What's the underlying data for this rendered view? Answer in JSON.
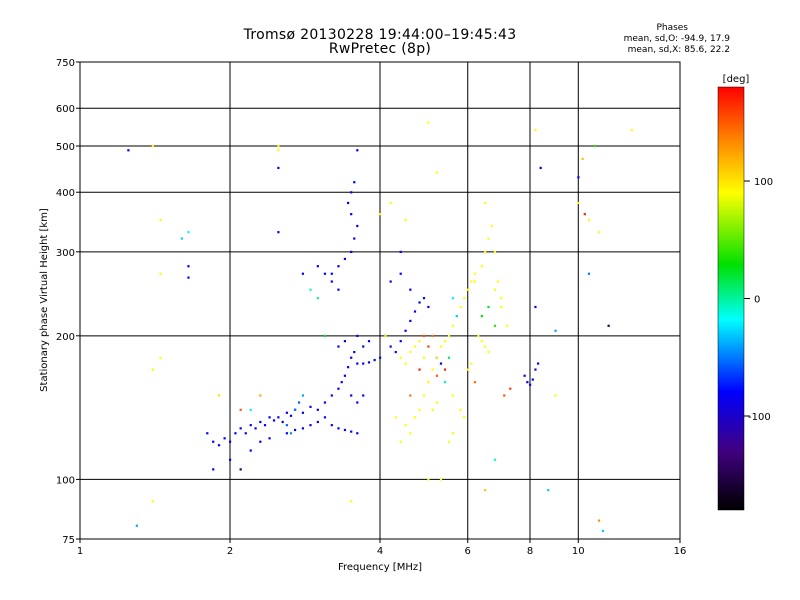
{
  "chart_data": {
    "type": "scatter",
    "title": "Tromsø 20130228 19:44:00–19:45:43",
    "subtitle": "RwPretec (8p)",
    "phases_header": "Phases",
    "phase_stats": [
      "mean, sd,O: -94.9, 17.9",
      "mean, sd,X:  85.6, 22.2"
    ],
    "xlabel": "Frequency [MHz]",
    "ylabel": "Stationary phase Virtual Height [km]",
    "x_scale": "log",
    "y_scale": "log",
    "xlim": [
      1,
      16
    ],
    "ylim": [
      75,
      750
    ],
    "x_ticks": [
      1,
      2,
      4,
      6,
      8,
      10,
      16
    ],
    "y_ticks": [
      75,
      100,
      200,
      300,
      400,
      500,
      600,
      750
    ],
    "grid": true,
    "colorbar": {
      "label": "[deg]",
      "range": [
        -180,
        180
      ],
      "ticks": [
        100,
        0,
        -100
      ],
      "colors": [
        "#ff0000",
        "#ff8000",
        "#ffff00",
        "#00e000",
        "#00ffff",
        "#0000ff",
        "#400080",
        "#000000"
      ]
    },
    "series": [
      {
        "name": "O",
        "phase_mean": -94.9,
        "phase_sd": 17.9,
        "color": "#0000ff",
        "points": [
          [
            1.25,
            490
          ],
          [
            1.65,
            280
          ],
          [
            1.65,
            265
          ],
          [
            1.8,
            125
          ],
          [
            1.85,
            120
          ],
          [
            1.9,
            118
          ],
          [
            1.95,
            122
          ],
          [
            2.0,
            120
          ],
          [
            2.05,
            125
          ],
          [
            2.1,
            128
          ],
          [
            2.15,
            125
          ],
          [
            2.2,
            130
          ],
          [
            2.25,
            128
          ],
          [
            2.3,
            132
          ],
          [
            2.35,
            130
          ],
          [
            2.4,
            135
          ],
          [
            2.45,
            133
          ],
          [
            2.5,
            135
          ],
          [
            2.55,
            132
          ],
          [
            2.6,
            138
          ],
          [
            2.65,
            136
          ],
          [
            2.7,
            140
          ],
          [
            2.8,
            138
          ],
          [
            2.9,
            142
          ],
          [
            3.0,
            140
          ],
          [
            3.1,
            145
          ],
          [
            3.2,
            150
          ],
          [
            3.3,
            155
          ],
          [
            3.35,
            160
          ],
          [
            3.4,
            165
          ],
          [
            3.45,
            172
          ],
          [
            3.5,
            180
          ],
          [
            3.55,
            185
          ],
          [
            3.6,
            175
          ],
          [
            3.7,
            175
          ],
          [
            3.8,
            176
          ],
          [
            3.9,
            178
          ],
          [
            4.0,
            180
          ],
          [
            3.2,
            130
          ],
          [
            3.3,
            128
          ],
          [
            3.4,
            127
          ],
          [
            3.5,
            126
          ],
          [
            3.6,
            125
          ],
          [
            2.6,
            125
          ],
          [
            2.7,
            127
          ],
          [
            2.8,
            128
          ],
          [
            2.9,
            130
          ],
          [
            3.0,
            132
          ],
          [
            3.1,
            135
          ],
          [
            3.2,
            270
          ],
          [
            3.3,
            280
          ],
          [
            3.4,
            290
          ],
          [
            3.5,
            300
          ],
          [
            3.55,
            320
          ],
          [
            3.6,
            340
          ],
          [
            3.5,
            360
          ],
          [
            3.45,
            380
          ],
          [
            3.5,
            400
          ],
          [
            3.55,
            420
          ],
          [
            3.3,
            250
          ],
          [
            3.2,
            260
          ],
          [
            3.1,
            270
          ],
          [
            3.0,
            280
          ],
          [
            2.8,
            270
          ],
          [
            3.6,
            200
          ],
          [
            3.7,
            190
          ],
          [
            3.8,
            195
          ],
          [
            4.1,
            200
          ],
          [
            4.2,
            190
          ],
          [
            4.3,
            185
          ],
          [
            4.4,
            195
          ],
          [
            4.5,
            205
          ],
          [
            4.6,
            215
          ],
          [
            4.7,
            225
          ],
          [
            4.8,
            235
          ],
          [
            4.9,
            240
          ],
          [
            5.0,
            230
          ],
          [
            4.2,
            260
          ],
          [
            4.4,
            270
          ],
          [
            4.6,
            250
          ],
          [
            4.4,
            300
          ],
          [
            7.8,
            165
          ],
          [
            7.9,
            160
          ],
          [
            8.0,
            158
          ],
          [
            8.1,
            162
          ],
          [
            8.2,
            170
          ],
          [
            8.3,
            175
          ],
          [
            8.2,
            230
          ],
          [
            8.4,
            450
          ],
          [
            10.0,
            430
          ],
          [
            1.85,
            105
          ],
          [
            2.0,
            110
          ],
          [
            2.5,
            450
          ],
          [
            2.5,
            330
          ],
          [
            3.6,
            490
          ],
          [
            3.3,
            190
          ],
          [
            3.4,
            195
          ],
          [
            3.5,
            150
          ],
          [
            3.6,
            145
          ],
          [
            3.7,
            150
          ],
          [
            2.2,
            115
          ],
          [
            2.3,
            120
          ],
          [
            2.4,
            122
          ],
          [
            5.2,
            180
          ],
          [
            5.3,
            175
          ]
        ]
      },
      {
        "name": "X",
        "phase_mean": 85.6,
        "phase_sd": 22.2,
        "color": "#ffff00",
        "points": [
          [
            4.5,
            130
          ],
          [
            4.6,
            125
          ],
          [
            4.7,
            135
          ],
          [
            4.8,
            140
          ],
          [
            4.9,
            150
          ],
          [
            5.0,
            160
          ],
          [
            5.1,
            170
          ],
          [
            5.2,
            180
          ],
          [
            5.3,
            190
          ],
          [
            5.4,
            195
          ],
          [
            5.5,
            200
          ],
          [
            5.6,
            210
          ],
          [
            5.7,
            220
          ],
          [
            5.8,
            230
          ],
          [
            5.9,
            240
          ],
          [
            6.0,
            250
          ],
          [
            6.2,
            260
          ],
          [
            6.4,
            280
          ],
          [
            6.5,
            300
          ],
          [
            6.6,
            320
          ],
          [
            6.7,
            340
          ],
          [
            6.8,
            300
          ],
          [
            6.9,
            260
          ],
          [
            7.0,
            230
          ],
          [
            7.2,
            210
          ],
          [
            6.3,
            200
          ],
          [
            6.4,
            195
          ],
          [
            6.5,
            190
          ],
          [
            6.6,
            185
          ],
          [
            5.6,
            150
          ],
          [
            5.8,
            140
          ],
          [
            5.9,
            135
          ],
          [
            5.5,
            120
          ],
          [
            5.6,
            125
          ],
          [
            6.0,
            170
          ],
          [
            6.1,
            175
          ],
          [
            4.4,
            180
          ],
          [
            4.5,
            175
          ],
          [
            4.6,
            185
          ],
          [
            4.7,
            190
          ],
          [
            4.8,
            195
          ],
          [
            5.1,
            140
          ],
          [
            5.2,
            145
          ],
          [
            5.0,
            160
          ],
          [
            5.0,
            560
          ],
          [
            5.2,
            440
          ],
          [
            4.5,
            350
          ],
          [
            4.2,
            380
          ],
          [
            4.0,
            360
          ],
          [
            4.1,
            200
          ],
          [
            4.3,
            135
          ],
          [
            4.4,
            120
          ],
          [
            6.1,
            260
          ],
          [
            6.2,
            270
          ],
          [
            6.8,
            250
          ],
          [
            7.0,
            240
          ],
          [
            10.0,
            380
          ],
          [
            10.5,
            350
          ],
          [
            11.0,
            330
          ],
          [
            12.8,
            540
          ],
          [
            8.2,
            540
          ],
          [
            9.0,
            150
          ],
          [
            1.4,
            90
          ],
          [
            1.4,
            500
          ],
          [
            1.45,
            350
          ],
          [
            1.45,
            270
          ],
          [
            1.45,
            180
          ],
          [
            1.4,
            170
          ],
          [
            2.5,
            490
          ],
          [
            2.5,
            500
          ],
          [
            3.5,
            90
          ],
          [
            5.0,
            100
          ],
          [
            6.5,
            380
          ],
          [
            4.9,
            180
          ],
          [
            5.3,
            100
          ]
        ]
      }
    ],
    "misc_points": [
      {
        "x": 1.3,
        "y": 80,
        "phase": -40
      },
      {
        "x": 1.6,
        "y": 320,
        "phase": -30
      },
      {
        "x": 1.65,
        "y": 330,
        "phase": -20
      },
      {
        "x": 2.1,
        "y": 105,
        "phase": -150
      },
      {
        "x": 2.7,
        "y": 140,
        "phase": -50
      },
      {
        "x": 2.75,
        "y": 145,
        "phase": -60
      },
      {
        "x": 2.8,
        "y": 150,
        "phase": -40
      },
      {
        "x": 2.6,
        "y": 130,
        "phase": -55
      },
      {
        "x": 2.65,
        "y": 125,
        "phase": -45
      },
      {
        "x": 2.9,
        "y": 250,
        "phase": -10
      },
      {
        "x": 3.0,
        "y": 240,
        "phase": 0
      },
      {
        "x": 3.1,
        "y": 200,
        "phase": 20
      },
      {
        "x": 4.9,
        "y": 200,
        "phase": 150
      },
      {
        "x": 5.0,
        "y": 190,
        "phase": 160
      },
      {
        "x": 5.1,
        "y": 200,
        "phase": 140
      },
      {
        "x": 5.4,
        "y": 170,
        "phase": 170
      },
      {
        "x": 5.2,
        "y": 165,
        "phase": 150
      },
      {
        "x": 4.8,
        "y": 170,
        "phase": 170
      },
      {
        "x": 4.6,
        "y": 150,
        "phase": 140
      },
      {
        "x": 5.4,
        "y": 160,
        "phase": -5
      },
      {
        "x": 5.5,
        "y": 180,
        "phase": 10
      },
      {
        "x": 6.4,
        "y": 220,
        "phase": 30
      },
      {
        "x": 6.6,
        "y": 230,
        "phase": 20
      },
      {
        "x": 6.8,
        "y": 210,
        "phase": 40
      },
      {
        "x": 7.1,
        "y": 150,
        "phase": 150
      },
      {
        "x": 7.3,
        "y": 155,
        "phase": 160
      },
      {
        "x": 6.2,
        "y": 160,
        "phase": 140
      },
      {
        "x": 10.3,
        "y": 360,
        "phase": 170
      },
      {
        "x": 11.5,
        "y": 210,
        "phase": -160
      },
      {
        "x": 10.5,
        "y": 270,
        "phase": -50
      },
      {
        "x": 8.7,
        "y": 95,
        "phase": -30
      },
      {
        "x": 9.0,
        "y": 205,
        "phase": -40
      },
      {
        "x": 11.2,
        "y": 78,
        "phase": -30
      },
      {
        "x": 11.0,
        "y": 82,
        "phase": 130
      },
      {
        "x": 10.8,
        "y": 500,
        "phase": 40
      },
      {
        "x": 10.2,
        "y": 470,
        "phase": 110
      },
      {
        "x": 6.5,
        "y": 95,
        "phase": 110
      },
      {
        "x": 6.8,
        "y": 110,
        "phase": -10
      },
      {
        "x": 2.2,
        "y": 140,
        "phase": -10
      },
      {
        "x": 2.3,
        "y": 150,
        "phase": 120
      },
      {
        "x": 2.1,
        "y": 140,
        "phase": 150
      },
      {
        "x": 1.9,
        "y": 150,
        "phase": 100
      },
      {
        "x": 5.7,
        "y": 220,
        "phase": -30
      },
      {
        "x": 5.6,
        "y": 240,
        "phase": -20
      }
    ]
  }
}
